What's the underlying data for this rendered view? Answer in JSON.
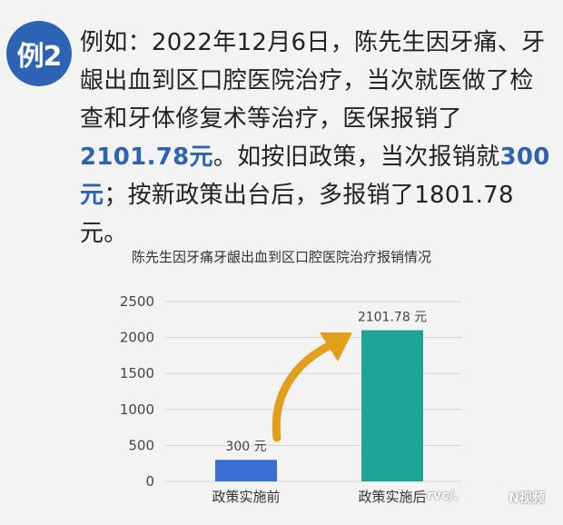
{
  "badge": "例2",
  "paragraph": {
    "t1": "例如：2022年12月6日，陈先生因牙痛、牙龈出血到区口腔医院治疗，当次就医做了检查和牙体修复术等治疗，医保报销了",
    "amount1": "2101.78元",
    "t2": "。如按旧政策，当次报销就",
    "amount2": "300元",
    "t3": "；按新政策出台后，多报销了1801.78元。"
  },
  "chart_data": {
    "type": "bar",
    "title": "陈先生因牙痛牙龈出血到区口腔医院治疗报销情况",
    "categories": [
      "政策实施前",
      "政策实施后"
    ],
    "values": [
      300,
      2101.78
    ],
    "data_labels": [
      "300 元",
      "2101.78 元"
    ],
    "colors": [
      "#3a6fd1",
      "#1fa595"
    ],
    "ylim": [
      0,
      2500
    ],
    "yticks": [
      0,
      500,
      1000,
      1500,
      2000,
      2500
    ],
    "grid": true,
    "arrow_color": "#e39e1c"
  },
  "watermarks": {
    "left": "rvc/.",
    "right": "N视频"
  }
}
